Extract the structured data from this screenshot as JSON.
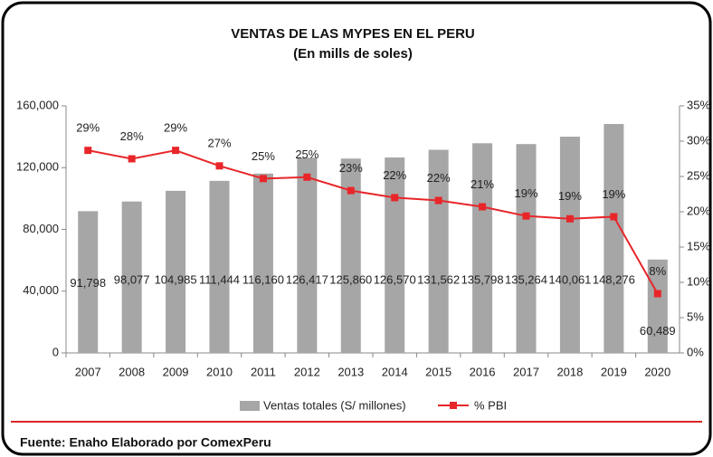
{
  "chart_data": {
    "type": "bar_line",
    "title": "VENTAS DE LAS MYPES EN EL PERU",
    "subtitle": "(En mills de soles)",
    "source": "Fuente: Enaho Elaborado por ComexPeru",
    "categories": [
      "2007",
      "2008",
      "2009",
      "2010",
      "2011",
      "2012",
      "2013",
      "2014",
      "2015",
      "2016",
      "2017",
      "2018",
      "2019",
      "2020"
    ],
    "series": [
      {
        "name": "Ventas totales (S/ millones)",
        "type": "bar",
        "color": "#a6a6a6",
        "values": [
          91798,
          98077,
          104985,
          111444,
          116160,
          126417,
          125860,
          126570,
          131562,
          135798,
          135264,
          140061,
          148276,
          60489
        ],
        "value_labels": [
          "91,798",
          "98,077",
          "104,985",
          "111,444",
          "116,160",
          "126,417",
          "125,860",
          "126,570",
          "131,562",
          "135,798",
          "135,264",
          "140,061",
          "148,276",
          "60,489"
        ]
      },
      {
        "name": "% PBI",
        "type": "line",
        "axis": "y2",
        "color": "#e8262a",
        "values": [
          28.7,
          27.5,
          28.7,
          26.5,
          24.7,
          24.9,
          23,
          22,
          21.6,
          20.7,
          19.4,
          19,
          19.3,
          8.4
        ],
        "value_labels": [
          "29%",
          "28%",
          "29%",
          "27%",
          "25%",
          "25%",
          "23%",
          "22%",
          "22%",
          "21%",
          "19%",
          "19%",
          "19%",
          "8%"
        ]
      }
    ],
    "ylim": [
      0,
      160000
    ],
    "yticks": [
      0,
      {
        "value": 40000,
        "label": "40,000"
      },
      {
        "value": 80000,
        "label": "80,000"
      },
      {
        "value": 120000,
        "label": "120,000"
      },
      {
        "value": 160000,
        "label": "160,000"
      }
    ],
    "y2lim": [
      0,
      35
    ],
    "y2ticks": [
      {
        "value": 0,
        "label": "0%"
      },
      {
        "value": 5,
        "label": "5%"
      },
      {
        "value": 10,
        "label": "10%"
      },
      {
        "value": 15,
        "label": "15%"
      },
      {
        "value": 20,
        "label": "20%"
      },
      {
        "value": 25,
        "label": "25%"
      },
      {
        "value": 30,
        "label": "30%"
      },
      {
        "value": 35,
        "label": "35%"
      }
    ]
  }
}
